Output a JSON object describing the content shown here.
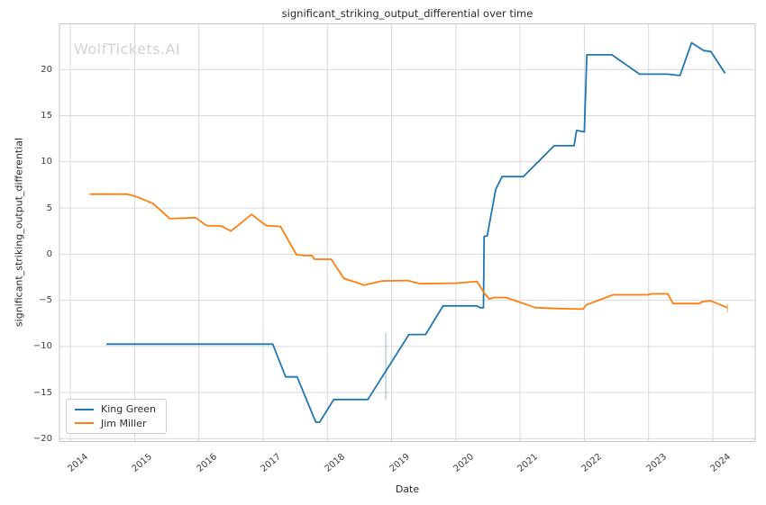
{
  "title": "significant_striking_output_differential over time",
  "watermark": "WolfTickets.AI",
  "colors": {
    "king_green": "#1f77b4",
    "jim_miller": "#ff7f0e",
    "grid": "#d9d9d9",
    "spine": "#c4c4c4",
    "tick_text": "#3c3c3c",
    "watermark": "#d2d2d2"
  },
  "chart_data": {
    "type": "line",
    "title": "significant_striking_output_differential over time",
    "xlabel": "Date",
    "ylabel": "significant_striking_output_differential",
    "grid": true,
    "legend_position": "lower left",
    "xlim": [
      2013.83,
      2024.66
    ],
    "ylim": [
      -20.3,
      24.95
    ],
    "x_ticks": [
      2014,
      2015,
      2016,
      2017,
      2018,
      2019,
      2020,
      2021,
      2022,
      2023,
      2024
    ],
    "y_ticks": [
      -20,
      -15,
      -10,
      -5,
      0,
      5,
      10,
      15,
      20
    ],
    "series": [
      {
        "name": "King Green",
        "color": "#1f77b4",
        "points": [
          [
            2014.56,
            -9.75
          ],
          [
            2017.15,
            -9.75
          ],
          [
            2017.35,
            -13.3
          ],
          [
            2017.53,
            -13.3
          ],
          [
            2017.82,
            -18.2
          ],
          [
            2017.88,
            -18.2
          ],
          [
            2018.1,
            -15.75
          ],
          [
            2018.63,
            -15.75
          ],
          [
            2019.27,
            -8.7
          ],
          [
            2019.53,
            -8.7
          ],
          [
            2019.8,
            -5.6
          ],
          [
            2020.33,
            -5.6
          ],
          [
            2020.38,
            -5.8
          ],
          [
            2020.43,
            -5.8
          ],
          [
            2020.44,
            1.9
          ],
          [
            2020.49,
            2.0
          ],
          [
            2020.62,
            7.0
          ],
          [
            2020.72,
            8.4
          ],
          [
            2021.05,
            8.4
          ],
          [
            2021.53,
            11.75
          ],
          [
            2021.84,
            11.75
          ],
          [
            2021.88,
            13.4
          ],
          [
            2022.0,
            13.25
          ],
          [
            2022.04,
            21.6
          ],
          [
            2022.43,
            21.6
          ],
          [
            2022.86,
            19.5
          ],
          [
            2023.3,
            19.5
          ],
          [
            2023.49,
            19.35
          ],
          [
            2023.67,
            22.9
          ],
          [
            2023.86,
            22.05
          ],
          [
            2023.97,
            21.95
          ],
          [
            2024.19,
            19.6
          ]
        ]
      },
      {
        "name": "Jim Miller",
        "color": "#ff7f0e",
        "points": [
          [
            2014.3,
            6.5
          ],
          [
            2014.88,
            6.5
          ],
          [
            2015.0,
            6.3
          ],
          [
            2015.28,
            5.5
          ],
          [
            2015.55,
            3.85
          ],
          [
            2015.95,
            3.95
          ],
          [
            2016.12,
            3.1
          ],
          [
            2016.35,
            3.05
          ],
          [
            2016.5,
            2.5
          ],
          [
            2016.82,
            4.3
          ],
          [
            2017.05,
            3.1
          ],
          [
            2017.27,
            3.0
          ],
          [
            2017.52,
            -0.05
          ],
          [
            2017.64,
            -0.15
          ],
          [
            2017.76,
            -0.15
          ],
          [
            2017.8,
            -0.55
          ],
          [
            2018.06,
            -0.55
          ],
          [
            2018.26,
            -2.65
          ],
          [
            2018.45,
            -3.05
          ],
          [
            2018.57,
            -3.35
          ],
          [
            2018.85,
            -2.9
          ],
          [
            2019.25,
            -2.85
          ],
          [
            2019.45,
            -3.2
          ],
          [
            2020.0,
            -3.15
          ],
          [
            2020.33,
            -2.95
          ],
          [
            2020.45,
            -4.3
          ],
          [
            2020.52,
            -4.85
          ],
          [
            2020.6,
            -4.7
          ],
          [
            2020.78,
            -4.7
          ],
          [
            2021.24,
            -5.8
          ],
          [
            2021.6,
            -5.9
          ],
          [
            2021.98,
            -5.95
          ],
          [
            2022.03,
            -5.5
          ],
          [
            2022.45,
            -4.4
          ],
          [
            2022.98,
            -4.4
          ],
          [
            2023.06,
            -4.3
          ],
          [
            2023.3,
            -4.3
          ],
          [
            2023.38,
            -5.35
          ],
          [
            2023.79,
            -5.35
          ],
          [
            2023.84,
            -5.15
          ],
          [
            2023.96,
            -5.05
          ],
          [
            2024.23,
            -5.8
          ]
        ]
      }
    ],
    "error_bars": [
      {
        "series": "King Green",
        "x": 2018.91,
        "y_from": -15.8,
        "y_to": -8.5,
        "color": "#1f77b4",
        "opacity": 0.35
      },
      {
        "series": "Jim Miller",
        "x": 2024.23,
        "y_from": -6.3,
        "y_to": -5.4,
        "color": "#ff7f0e",
        "opacity": 0.5
      }
    ]
  }
}
